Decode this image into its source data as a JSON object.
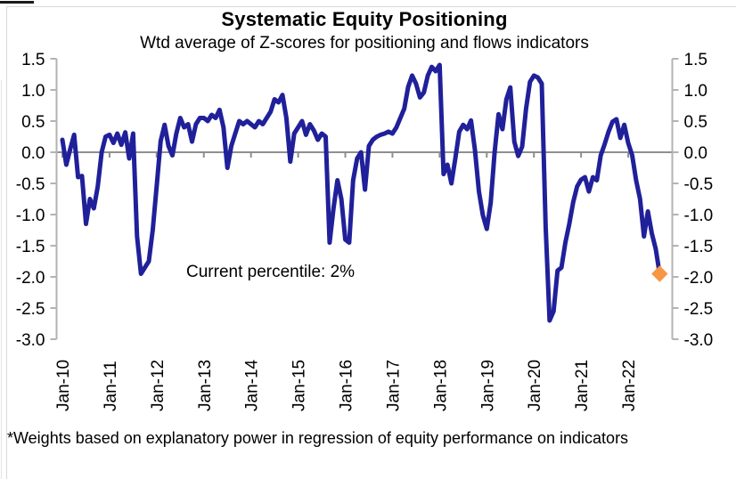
{
  "header": {
    "title": "Systematic Equity Positioning",
    "subtitle": "Wtd average of Z-scores for positioning and flows indicators"
  },
  "annotation": {
    "text": "Current percentile: 2%"
  },
  "footnote": {
    "text": "*Weights based on explanatory power in regression of equity performance on indicators"
  },
  "colors": {
    "line": "#20209A",
    "marker": "#F79646",
    "zero_line": "#8f8f8f",
    "axis": "#b3b3b3",
    "text": "#000000"
  },
  "chart_data": {
    "type": "line",
    "title": "Systematic Equity Positioning",
    "subtitle": "Wtd average of Z-scores for positioning and flows indicators",
    "x_start": "Jan-2010",
    "frequency": "monthly",
    "x_tick_labels": [
      "Jan-10",
      "Jan-11",
      "Jan-12",
      "Jan-13",
      "Jan-14",
      "Jan-15",
      "Jan-16",
      "Jan-17",
      "Jan-18",
      "Jan-19",
      "Jan-20",
      "Jan-21",
      "Jan-22"
    ],
    "y_ticks": [
      1.5,
      1.0,
      0.5,
      0.0,
      -0.5,
      -1.0,
      -1.5,
      -2.0,
      -2.5,
      -3.0
    ],
    "ylim": [
      -3.0,
      1.5
    ],
    "grid": "zero-line-only",
    "legend": "none",
    "series": [
      {
        "name": "Wtd average of Z-scores for positioning and flows indicators",
        "values": [
          0.2,
          -0.2,
          0.05,
          0.28,
          -0.4,
          -0.38,
          -1.15,
          -0.75,
          -0.9,
          -0.55,
          0.0,
          0.25,
          0.28,
          0.15,
          0.3,
          0.12,
          0.32,
          -0.1,
          0.3,
          -1.35,
          -1.95,
          -1.85,
          -1.75,
          -1.25,
          -0.55,
          0.18,
          0.44,
          0.1,
          -0.05,
          0.3,
          0.55,
          0.4,
          0.45,
          0.17,
          0.45,
          0.55,
          0.55,
          0.5,
          0.6,
          0.55,
          0.68,
          0.4,
          -0.25,
          0.1,
          0.3,
          0.5,
          0.45,
          0.5,
          0.45,
          0.4,
          0.5,
          0.45,
          0.55,
          0.65,
          0.85,
          0.8,
          0.92,
          0.55,
          -0.15,
          0.3,
          0.4,
          0.5,
          0.28,
          0.45,
          0.35,
          0.2,
          0.3,
          0.25,
          -1.45,
          -0.9,
          -0.45,
          -0.75,
          -1.4,
          -1.45,
          -0.45,
          -0.1,
          0.0,
          -0.6,
          0.1,
          0.2,
          0.25,
          0.28,
          0.3,
          0.33,
          0.3,
          0.4,
          0.55,
          0.7,
          1.05,
          1.23,
          1.1,
          0.88,
          0.96,
          1.23,
          1.37,
          1.3,
          1.4,
          -0.35,
          -0.2,
          -0.5,
          -0.1,
          0.33,
          0.44,
          0.37,
          0.51,
          0.04,
          -0.63,
          -1.01,
          -1.23,
          -0.81,
          0.0,
          0.61,
          0.37,
          0.85,
          1.04,
          0.17,
          -0.06,
          0.09,
          0.7,
          1.13,
          1.23,
          1.2,
          1.1,
          -1.2,
          -2.7,
          -2.55,
          -1.9,
          -1.85,
          -1.45,
          -1.15,
          -0.8,
          -0.55,
          -0.44,
          -0.4,
          -0.63,
          -0.4,
          -0.45,
          -0.05,
          0.13,
          0.33,
          0.49,
          0.53,
          0.23,
          0.44,
          0.15,
          -0.05,
          -0.45,
          -0.75,
          -1.35,
          -0.95,
          -1.3,
          -1.55,
          -1.95
        ]
      }
    ],
    "latest_point": {
      "value": -1.95,
      "marker": "orange-diamond"
    },
    "annotations": [
      {
        "text": "Current percentile: 2%"
      }
    ]
  }
}
